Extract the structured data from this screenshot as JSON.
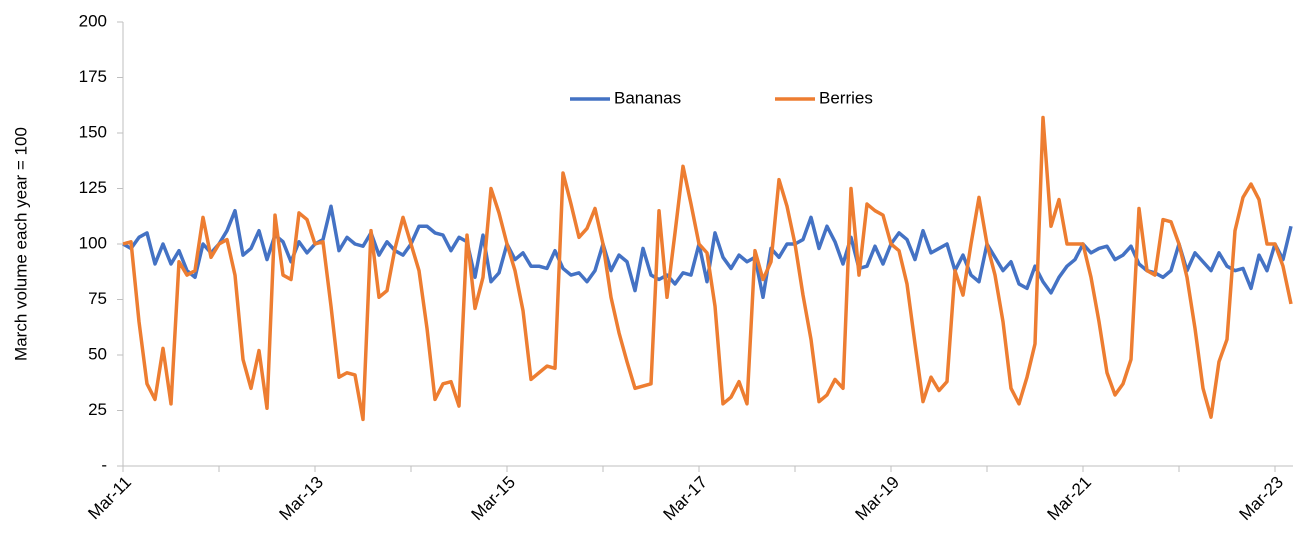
{
  "chart_data": {
    "type": "line",
    "ylabel": "March volume each year = 100",
    "categories": [
      "Mar-11",
      null,
      null,
      null,
      null,
      null,
      null,
      null,
      null,
      null,
      null,
      null,
      null,
      null,
      null,
      null,
      null,
      null,
      null,
      null,
      null,
      null,
      null,
      null,
      "Mar-13",
      null,
      null,
      null,
      null,
      null,
      null,
      null,
      null,
      null,
      null,
      null,
      null,
      null,
      null,
      null,
      null,
      null,
      null,
      null,
      null,
      null,
      null,
      null,
      "Mar-15",
      null,
      null,
      null,
      null,
      null,
      null,
      null,
      null,
      null,
      null,
      null,
      null,
      null,
      null,
      null,
      null,
      null,
      null,
      null,
      null,
      null,
      null,
      null,
      "Mar-17",
      null,
      null,
      null,
      null,
      null,
      null,
      null,
      null,
      null,
      null,
      null,
      null,
      null,
      null,
      null,
      null,
      null,
      null,
      null,
      null,
      null,
      null,
      null,
      "Mar-19",
      null,
      null,
      null,
      null,
      null,
      null,
      null,
      null,
      null,
      null,
      null,
      null,
      null,
      null,
      null,
      null,
      null,
      null,
      null,
      null,
      null,
      null,
      null,
      "Mar-21",
      null,
      null,
      null,
      null,
      null,
      null,
      null,
      null,
      null,
      null,
      null,
      null,
      null,
      null,
      null,
      null,
      null,
      null,
      null,
      null,
      null,
      null,
      null,
      "Mar-23",
      null,
      null
    ],
    "series": [
      {
        "name": "Bananas",
        "color": "#4472c4",
        "values": [
          100,
          98,
          103,
          105,
          91,
          100,
          91,
          97,
          88,
          85,
          100,
          96,
          100,
          106,
          115,
          95,
          98,
          106,
          93,
          104,
          101,
          92,
          101,
          96,
          100,
          102,
          117,
          97,
          103,
          100,
          99,
          105,
          95,
          101,
          97,
          95,
          100,
          108,
          108,
          105,
          104,
          97,
          103,
          101,
          85,
          104,
          83,
          87,
          100,
          93,
          96,
          90,
          90,
          89,
          97,
          89,
          86,
          87,
          83,
          88,
          100,
          88,
          95,
          92,
          79,
          98,
          86,
          84,
          86,
          82,
          87,
          86,
          100,
          83,
          105,
          94,
          89,
          95,
          92,
          94,
          76,
          98,
          94,
          100,
          100,
          102,
          112,
          98,
          108,
          101,
          91,
          103,
          89,
          90,
          99,
          91,
          100,
          105,
          102,
          93,
          106,
          96,
          98,
          100,
          88,
          95,
          86,
          83,
          100,
          94,
          88,
          92,
          82,
          80,
          90,
          83,
          78,
          85,
          90,
          93,
          100,
          96,
          98,
          99,
          93,
          95,
          99,
          91,
          88,
          87,
          85,
          88,
          100,
          88,
          96,
          92,
          88,
          96,
          90,
          88,
          89,
          80,
          95,
          88,
          100,
          93,
          108
        ]
      },
      {
        "name": "Berries",
        "color": "#ed7d31",
        "values": [
          100,
          101,
          65,
          37,
          30,
          53,
          28,
          92,
          86,
          88,
          112,
          94,
          100,
          102,
          86,
          48,
          35,
          52,
          26,
          113,
          86,
          84,
          114,
          111,
          100,
          101,
          72,
          40,
          42,
          41,
          21,
          106,
          76,
          79,
          98,
          112,
          100,
          88,
          62,
          30,
          37,
          38,
          27,
          104,
          71,
          85,
          125,
          114,
          100,
          88,
          70,
          39,
          42,
          45,
          44,
          132,
          118,
          103,
          107,
          116,
          100,
          76,
          60,
          47,
          35,
          36,
          37,
          115,
          76,
          105,
          135,
          118,
          100,
          96,
          72,
          28,
          31,
          38,
          28,
          97,
          84,
          92,
          129,
          117,
          100,
          77,
          57,
          29,
          32,
          39,
          35,
          125,
          86,
          118,
          115,
          113,
          100,
          97,
          82,
          55,
          29,
          40,
          34,
          38,
          88,
          77,
          100,
          121,
          100,
          86,
          65,
          35,
          28,
          40,
          55,
          157,
          108,
          120,
          100,
          100,
          100,
          85,
          65,
          42,
          32,
          37,
          48,
          116,
          88,
          86,
          111,
          110,
          100,
          85,
          62,
          35,
          22,
          47,
          57,
          106,
          121,
          127,
          120,
          100,
          100,
          90,
          73
        ]
      }
    ],
    "ylim": [
      0,
      200
    ],
    "yticks": [
      {
        "value": 0,
        "label": "-"
      },
      25,
      50,
      75,
      100,
      125,
      150,
      175,
      200
    ],
    "legend": "top"
  }
}
